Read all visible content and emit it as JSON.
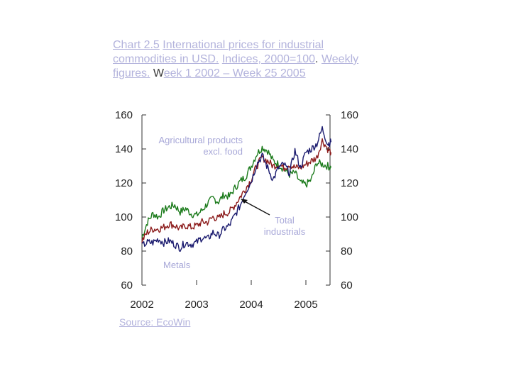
{
  "title": {
    "label": "Chart 2.5",
    "text_1": "International prices for industrial commodities in USD.",
    "text_2": "Indices, 2000=100",
    "sep": ".",
    "text_3": "Weekly figures.",
    "w": "W",
    "text_4": "eek 1 2002 – Week 25 2005"
  },
  "source": "Source: EcoWin",
  "chart_data": {
    "type": "line",
    "xlim": [
      2002,
      2005.5
    ],
    "ylim": [
      60,
      160
    ],
    "x_ticks": [
      2002,
      2003,
      2004,
      2005
    ],
    "x_tick_labels": [
      "2002",
      "2003",
      "2004",
      "2005"
    ],
    "y_ticks": [
      60,
      80,
      100,
      120,
      140,
      160
    ],
    "y_tick_labels": [
      "60",
      "80",
      "100",
      "120",
      "140",
      "160"
    ],
    "grid": false,
    "annotations": [
      {
        "text": "Agricultural products excl. food",
        "series": "agri"
      },
      {
        "text": "Total industrials",
        "series": "total",
        "arrow": true
      },
      {
        "text": "Metals",
        "series": "metals"
      }
    ],
    "series": [
      {
        "id": "agri",
        "color": "#1a7a1a",
        "x": [
          2002.0,
          2002.1,
          2002.2,
          2002.3,
          2002.4,
          2002.5,
          2002.6,
          2002.7,
          2002.8,
          2002.9,
          2003.0,
          2003.1,
          2003.2,
          2003.3,
          2003.4,
          2003.5,
          2003.6,
          2003.7,
          2003.8,
          2003.9,
          2004.0,
          2004.1,
          2004.2,
          2004.3,
          2004.4,
          2004.5,
          2004.6,
          2004.7,
          2004.8,
          2004.9,
          2005.0,
          2005.1,
          2005.2,
          2005.3,
          2005.4,
          2005.46
        ],
        "y": [
          88,
          97,
          102,
          100,
          104,
          106,
          107,
          103,
          105,
          102,
          101,
          104,
          108,
          111,
          109,
          113,
          112,
          117,
          121,
          124,
          130,
          137,
          141,
          139,
          133,
          131,
          128,
          125,
          126,
          120,
          119,
          122,
          132,
          131,
          130,
          129
        ]
      },
      {
        "id": "total",
        "color": "#8b1a1a",
        "x": [
          2002.0,
          2002.1,
          2002.2,
          2002.3,
          2002.4,
          2002.5,
          2002.6,
          2002.7,
          2002.8,
          2002.9,
          2003.0,
          2003.1,
          2003.2,
          2003.3,
          2003.4,
          2003.5,
          2003.6,
          2003.7,
          2003.8,
          2003.9,
          2004.0,
          2004.1,
          2004.2,
          2004.3,
          2004.4,
          2004.5,
          2004.6,
          2004.7,
          2004.8,
          2004.9,
          2005.0,
          2005.1,
          2005.2,
          2005.3,
          2005.4,
          2005.46
        ],
        "y": [
          86,
          91,
          93,
          93,
          94,
          96,
          95,
          93,
          95,
          94,
          95,
          97,
          97,
          100,
          99,
          102,
          103,
          107,
          112,
          117,
          122,
          130,
          135,
          133,
          130,
          131,
          129,
          131,
          129,
          129,
          131,
          133,
          135,
          145,
          140,
          138
        ]
      },
      {
        "id": "metals",
        "color": "#1a1a6e",
        "x": [
          2002.0,
          2002.1,
          2002.2,
          2002.3,
          2002.4,
          2002.5,
          2002.6,
          2002.7,
          2002.8,
          2002.9,
          2003.0,
          2003.1,
          2003.2,
          2003.3,
          2003.4,
          2003.5,
          2003.6,
          2003.7,
          2003.8,
          2003.9,
          2004.0,
          2004.1,
          2004.2,
          2004.3,
          2004.4,
          2004.5,
          2004.6,
          2004.7,
          2004.8,
          2004.9,
          2005.0,
          2005.1,
          2005.2,
          2005.3,
          2005.4,
          2005.46
        ],
        "y": [
          83,
          85,
          85,
          87,
          85,
          86,
          84,
          82,
          85,
          84,
          85,
          88,
          87,
          91,
          89,
          93,
          95,
          101,
          107,
          115,
          121,
          131,
          136,
          129,
          122,
          129,
          131,
          126,
          139,
          129,
          138,
          140,
          143,
          152,
          143,
          144
        ]
      }
    ]
  }
}
